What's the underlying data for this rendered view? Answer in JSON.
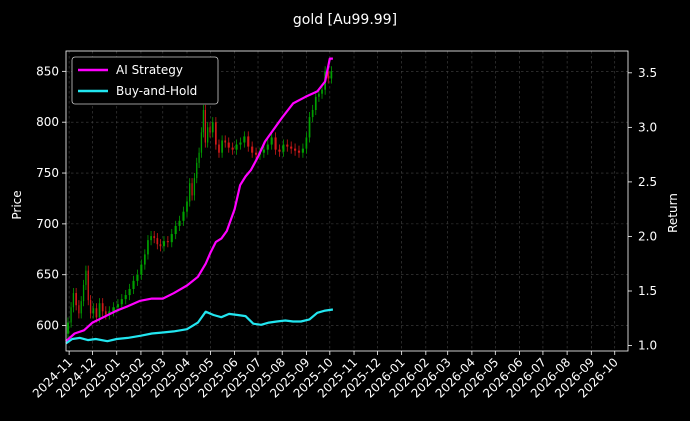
{
  "chart_data": {
    "type": "line",
    "title": "gold [Au99.99]",
    "y_left_label": "Price",
    "y_right_label": "Return",
    "y_left_lim": [
      575,
      870
    ],
    "y_right_lim": [
      0.95,
      3.7
    ],
    "y_left_ticks": [
      600,
      650,
      700,
      750,
      800,
      850
    ],
    "y_right_ticks": [
      1.0,
      1.5,
      2.0,
      2.5,
      3.0,
      3.5
    ],
    "x_lim": [
      "2024-10-28",
      "2026-10-18"
    ],
    "x_tick_dates": [
      "2024-11-01",
      "2024-12-01",
      "2025-01-01",
      "2025-02-01",
      "2025-03-01",
      "2025-04-01",
      "2025-05-01",
      "2025-06-01",
      "2025-07-01",
      "2025-08-01",
      "2025-09-01",
      "2025-10-01",
      "2025-11-01",
      "2025-12-01",
      "2026-01-01",
      "2026-02-01",
      "2026-03-01",
      "2026-04-01",
      "2026-05-01",
      "2026-06-01",
      "2026-07-01",
      "2026-08-01",
      "2026-09-01",
      "2026-10-01"
    ],
    "x_tick_labels": [
      "2024-11",
      "2024-12",
      "2025-01",
      "2025-02",
      "2025-03",
      "2025-04",
      "2025-05",
      "2025-06",
      "2025-07",
      "2025-08",
      "2025-09",
      "2025-10",
      "2025-11",
      "2025-12",
      "2026-01",
      "2026-02",
      "2026-03",
      "2026-04",
      "2026-05",
      "2026-06",
      "2026-07",
      "2026-08",
      "2026-09",
      "2026-10"
    ],
    "grid": true,
    "legend_position": "top-left",
    "colors": {
      "up": "#00a000",
      "down": "#d01a1a",
      "ai": "#ff00ff",
      "bh": "#22e6f0",
      "grid": "#444444"
    },
    "price": [
      [
        "2024-10-28",
        592
      ],
      [
        "2024-11-02",
        603
      ],
      [
        "2024-11-05",
        618
      ],
      [
        "2024-11-08",
        632
      ],
      [
        "2024-11-12",
        620
      ],
      [
        "2024-11-15",
        612
      ],
      [
        "2024-11-18",
        624
      ],
      [
        "2024-11-21",
        640
      ],
      [
        "2024-11-24",
        654
      ],
      [
        "2024-11-27",
        625
      ],
      [
        "2024-11-30",
        612
      ],
      [
        "2024-12-04",
        617
      ],
      [
        "2024-12-08",
        608
      ],
      [
        "2024-12-12",
        622
      ],
      [
        "2024-12-16",
        614
      ],
      [
        "2024-12-20",
        611
      ],
      [
        "2024-12-25",
        614
      ],
      [
        "2024-12-31",
        618
      ],
      [
        "2025-01-05",
        621
      ],
      [
        "2025-01-10",
        626
      ],
      [
        "2025-01-15",
        630
      ],
      [
        "2025-01-20",
        636
      ],
      [
        "2025-01-25",
        644
      ],
      [
        "2025-01-30",
        650
      ],
      [
        "2025-02-04",
        660
      ],
      [
        "2025-02-08",
        670
      ],
      [
        "2025-02-12",
        684
      ],
      [
        "2025-02-16",
        688
      ],
      [
        "2025-02-20",
        686
      ],
      [
        "2025-02-24",
        680
      ],
      [
        "2025-02-28",
        678
      ],
      [
        "2025-03-05",
        683
      ],
      [
        "2025-03-10",
        682
      ],
      [
        "2025-03-15",
        690
      ],
      [
        "2025-03-20",
        698
      ],
      [
        "2025-03-25",
        703
      ],
      [
        "2025-03-30",
        712
      ],
      [
        "2025-04-03",
        722
      ],
      [
        "2025-04-06",
        740
      ],
      [
        "2025-04-09",
        728
      ],
      [
        "2025-04-12",
        745
      ],
      [
        "2025-04-15",
        760
      ],
      [
        "2025-04-18",
        770
      ],
      [
        "2025-04-21",
        790
      ],
      [
        "2025-04-23",
        812
      ],
      [
        "2025-04-26",
        780
      ],
      [
        "2025-04-29",
        795
      ],
      [
        "2025-05-02",
        790
      ],
      [
        "2025-05-06",
        800
      ],
      [
        "2025-05-10",
        778
      ],
      [
        "2025-05-14",
        770
      ],
      [
        "2025-05-18",
        782
      ],
      [
        "2025-05-22",
        780
      ],
      [
        "2025-05-27",
        775
      ],
      [
        "2025-06-01",
        773
      ],
      [
        "2025-06-06",
        778
      ],
      [
        "2025-06-11",
        780
      ],
      [
        "2025-06-16",
        786
      ],
      [
        "2025-06-21",
        776
      ],
      [
        "2025-06-26",
        770
      ],
      [
        "2025-07-01",
        768
      ],
      [
        "2025-07-06",
        770
      ],
      [
        "2025-07-11",
        773
      ],
      [
        "2025-07-16",
        778
      ],
      [
        "2025-07-21",
        785
      ],
      [
        "2025-07-26",
        773
      ],
      [
        "2025-07-31",
        771
      ],
      [
        "2025-08-05",
        778
      ],
      [
        "2025-08-10",
        776
      ],
      [
        "2025-08-15",
        774
      ],
      [
        "2025-08-20",
        772
      ],
      [
        "2025-08-25",
        770
      ],
      [
        "2025-08-30",
        774
      ],
      [
        "2025-09-03",
        785
      ],
      [
        "2025-09-07",
        805
      ],
      [
        "2025-09-11",
        812
      ],
      [
        "2025-09-15",
        825
      ],
      [
        "2025-09-19",
        828
      ],
      [
        "2025-09-23",
        832
      ],
      [
        "2025-09-27",
        850
      ],
      [
        "2025-10-01",
        843
      ],
      [
        "2025-10-05",
        850
      ]
    ],
    "series": [
      {
        "name": "AI Strategy",
        "values": [
          [
            "2024-10-28",
            1.04
          ],
          [
            "2024-11-08",
            1.11
          ],
          [
            "2024-11-20",
            1.14
          ],
          [
            "2024-12-01",
            1.21
          ],
          [
            "2024-12-15",
            1.26
          ],
          [
            "2025-01-01",
            1.32
          ],
          [
            "2025-01-15",
            1.36
          ],
          [
            "2025-01-31",
            1.41
          ],
          [
            "2025-02-15",
            1.43
          ],
          [
            "2025-03-01",
            1.43
          ],
          [
            "2025-03-15",
            1.48
          ],
          [
            "2025-04-01",
            1.55
          ],
          [
            "2025-04-15",
            1.63
          ],
          [
            "2025-04-25",
            1.75
          ],
          [
            "2025-05-01",
            1.85
          ],
          [
            "2025-05-08",
            1.95
          ],
          [
            "2025-05-15",
            1.98
          ],
          [
            "2025-05-22",
            2.05
          ],
          [
            "2025-06-01",
            2.25
          ],
          [
            "2025-06-08",
            2.47
          ],
          [
            "2025-06-15",
            2.55
          ],
          [
            "2025-06-22",
            2.61
          ],
          [
            "2025-07-01",
            2.73
          ],
          [
            "2025-07-10",
            2.87
          ],
          [
            "2025-07-20",
            2.97
          ],
          [
            "2025-08-01",
            3.09
          ],
          [
            "2025-08-15",
            3.22
          ],
          [
            "2025-08-31",
            3.28
          ],
          [
            "2025-09-15",
            3.33
          ],
          [
            "2025-09-25",
            3.42
          ],
          [
            "2025-10-01",
            3.63
          ],
          [
            "2025-10-05",
            3.63
          ]
        ]
      },
      {
        "name": "Buy-and-Hold",
        "values": [
          [
            "2024-10-28",
            1.02
          ],
          [
            "2024-11-05",
            1.06
          ],
          [
            "2024-11-15",
            1.07
          ],
          [
            "2024-11-25",
            1.05
          ],
          [
            "2024-12-05",
            1.06
          ],
          [
            "2024-12-20",
            1.04
          ],
          [
            "2025-01-01",
            1.06
          ],
          [
            "2025-01-15",
            1.07
          ],
          [
            "2025-02-01",
            1.09
          ],
          [
            "2025-02-15",
            1.11
          ],
          [
            "2025-03-01",
            1.12
          ],
          [
            "2025-03-15",
            1.13
          ],
          [
            "2025-04-01",
            1.15
          ],
          [
            "2025-04-15",
            1.21
          ],
          [
            "2025-04-25",
            1.31
          ],
          [
            "2025-05-05",
            1.28
          ],
          [
            "2025-05-15",
            1.26
          ],
          [
            "2025-05-25",
            1.29
          ],
          [
            "2025-06-05",
            1.28
          ],
          [
            "2025-06-15",
            1.27
          ],
          [
            "2025-06-25",
            1.2
          ],
          [
            "2025-07-05",
            1.19
          ],
          [
            "2025-07-15",
            1.21
          ],
          [
            "2025-07-25",
            1.22
          ],
          [
            "2025-08-05",
            1.23
          ],
          [
            "2025-08-15",
            1.22
          ],
          [
            "2025-08-25",
            1.22
          ],
          [
            "2025-09-05",
            1.24
          ],
          [
            "2025-09-15",
            1.3
          ],
          [
            "2025-09-25",
            1.32
          ],
          [
            "2025-10-05",
            1.33
          ]
        ]
      }
    ]
  }
}
